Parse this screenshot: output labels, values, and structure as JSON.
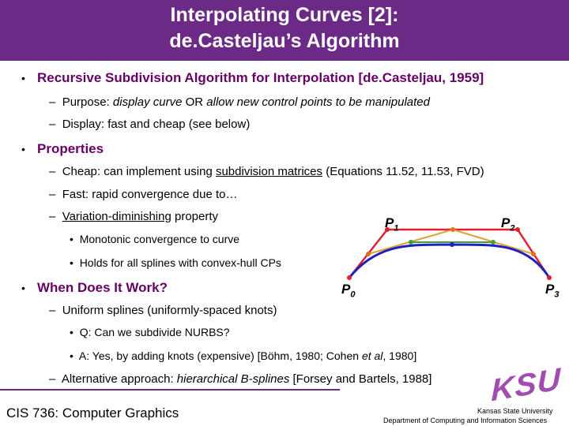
{
  "header": {
    "title_line1": "Interpolating Curves [2]:",
    "title_line2": "de.Casteljau’s Algorithm"
  },
  "bullets": {
    "b1": "Recursive Subdivision Algorithm for Interpolation [de.Casteljau, 1959]",
    "b1_sub1_a": "Purpose: ",
    "b1_sub1_b": "display curve",
    "b1_sub1_c": " OR ",
    "b1_sub1_d": "allow new control points to be manipulated",
    "b1_sub2": "Display: fast and cheap (see below)",
    "b2": "Properties",
    "b2_sub1_a": "Cheap: can implement using ",
    "b2_sub1_b": "subdivision matrices",
    "b2_sub1_c": " (Equations 11.52, 11.53, FVD)",
    "b2_sub2": "Fast: rapid convergence due to…",
    "b2_sub3_a": "Variation-diminishing",
    "b2_sub3_b": " property",
    "b2_sub3_i1": "Monotonic convergence to curve",
    "b2_sub3_i2": "Holds for all splines with convex-hull CPs",
    "b3": "When Does It Work?",
    "b3_sub1": "Uniform splines (uniformly-spaced knots)",
    "b3_sub1_i1": "Q: Can we subdivide NURBS?",
    "b3_sub1_i2_a": "A: Yes, by adding knots (expensive) [Böhm, 1980; Cohen ",
    "b3_sub1_i2_b": "et al",
    "b3_sub1_i2_c": ", 1980]",
    "b3_sub2_a": "Alternative approach: ",
    "b3_sub2_b": "hierarchical B-splines",
    "b3_sub2_c": " [Forsey and Bartels, 1988]"
  },
  "diagram": {
    "p0": "P",
    "p0_sub": "0",
    "p1": "P",
    "p1_sub": "1",
    "p2": "P",
    "p2_sub": "2",
    "p3": "P",
    "p3_sub": "3",
    "colors": {
      "polygon": "#e02030",
      "level1": "#e0a030",
      "level2": "#40a040",
      "curve": "#2020c0"
    }
  },
  "footer": {
    "course": "CIS 736: Computer Graphics",
    "logo": "KSU",
    "university": "Kansas State University",
    "department": "Department of Computing and Information Sciences"
  },
  "icons": {
    "bullet": "bullet-dot-icon",
    "dash": "dash-icon"
  }
}
